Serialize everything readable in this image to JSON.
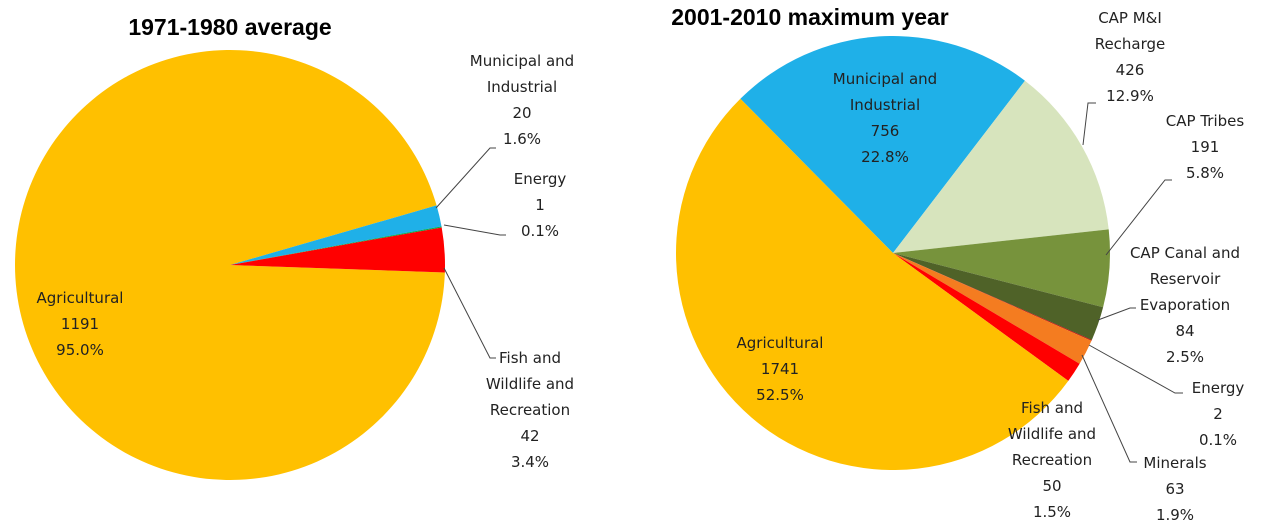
{
  "chart_data": [
    {
      "type": "pie",
      "title": "1971-1980 average",
      "categories": [
        "Agricultural",
        "Municipal and Industrial",
        "Energy",
        "Fish and Wildlife and Recreation"
      ],
      "values": [
        1191,
        20,
        1,
        42
      ],
      "percent_labels": [
        "95.0%",
        "1.6%",
        "0.1%",
        "3.4%"
      ],
      "colors": [
        "#ffc000",
        "#1fb0e8",
        "#00b050",
        "#ff0000"
      ]
    },
    {
      "type": "pie",
      "title": "2001-2010 maximum year",
      "categories": [
        "Municipal and Industrial",
        "CAP M&I Recharge",
        "CAP Tribes",
        "CAP Canal and Reservoir Evaporation",
        "Energy",
        "Minerals",
        "Fish and Wildlife and Recreation",
        "Agricultural"
      ],
      "values": [
        756,
        426,
        191,
        84,
        2,
        63,
        50,
        1741
      ],
      "percent_labels": [
        "22.8%",
        "12.9%",
        "5.8%",
        "2.5%",
        "0.1%",
        "1.9%",
        "1.5%",
        "52.5%"
      ],
      "colors": [
        "#1fb0e8",
        "#d7e4bd",
        "#77933c",
        "#4f6228",
        "#c00000",
        "#f47c20",
        "#ff0000",
        "#ffc000"
      ]
    }
  ]
}
